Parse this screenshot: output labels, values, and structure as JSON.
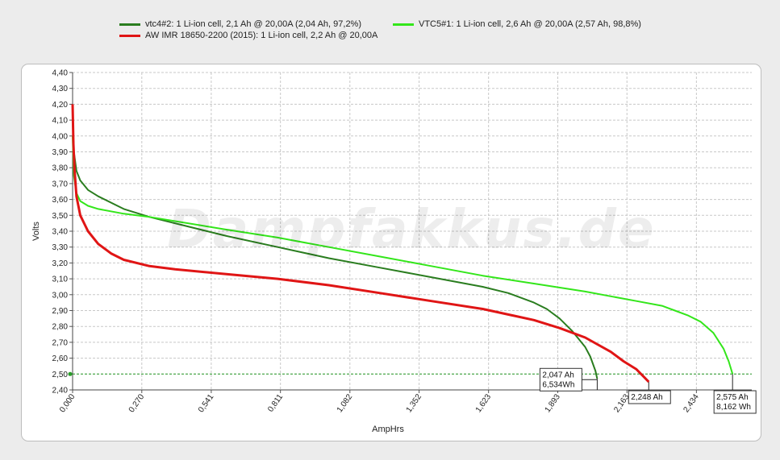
{
  "legend": [
    {
      "label": "vtc4#2: 1 Li-ion cell, 2,1 Ah @ 20,00A (2,04 Ah, 97,2%)",
      "color": "#2a7d1f"
    },
    {
      "label": "VTC5#1: 1 Li-ion cell, 2,6 Ah @ 20,00A (2,57 Ah, 98,8%)",
      "color": "#33e61a"
    },
    {
      "label": "AW IMR 18650-2200 (2015): 1 Li-ion cell, 2,2 Ah @ 20,00A",
      "color": "#e01515"
    }
  ],
  "watermark": "Dampfakkus.de",
  "chart_data": {
    "type": "line",
    "xlabel": "AmpHrs",
    "ylabel": "Volts",
    "xlim": [
      0,
      2.65
    ],
    "ylim": [
      2.4,
      4.4
    ],
    "xticks": [
      "0,000",
      "0,270",
      "0,541",
      "0,811",
      "1,082",
      "1,352",
      "1,623",
      "1,893",
      "2,163",
      "2,434"
    ],
    "yticks": [
      "2,40",
      "2,50",
      "2,60",
      "2,70",
      "2,80",
      "2,90",
      "3,00",
      "3,10",
      "3,20",
      "3,30",
      "3,40",
      "3,50",
      "3,60",
      "3,70",
      "3,80",
      "3,90",
      "4,00",
      "4,10",
      "4,20",
      "4,30",
      "4,40"
    ],
    "grid": true,
    "cutoff_voltage": 2.5,
    "series": [
      {
        "name": "vtc4#2: 1 Li-ion cell, 2,1 Ah @ 20,00A (2,04 Ah, 97,2%)",
        "color": "#2a7d1f",
        "x": [
          0.0,
          0.005,
          0.015,
          0.03,
          0.06,
          0.1,
          0.2,
          0.3,
          0.45,
          0.6,
          0.8,
          1.0,
          1.2,
          1.4,
          1.6,
          1.7,
          1.8,
          1.85,
          1.9,
          1.95,
          2.0,
          2.02,
          2.04,
          2.047
        ],
        "y": [
          4.1,
          3.9,
          3.78,
          3.72,
          3.66,
          3.62,
          3.54,
          3.49,
          3.43,
          3.37,
          3.3,
          3.23,
          3.17,
          3.11,
          3.05,
          3.01,
          2.95,
          2.91,
          2.85,
          2.77,
          2.67,
          2.61,
          2.52,
          2.47
        ]
      },
      {
        "name": "VTC5#1: 1 Li-ion cell, 2,6 Ah @ 20,00A (2,57 Ah, 98,8%)",
        "color": "#33e61a",
        "x": [
          0.0,
          0.005,
          0.015,
          0.03,
          0.06,
          0.1,
          0.2,
          0.3,
          0.45,
          0.6,
          0.8,
          1.0,
          1.2,
          1.4,
          1.6,
          1.8,
          2.0,
          2.1,
          2.2,
          2.3,
          2.35,
          2.4,
          2.45,
          2.5,
          2.54,
          2.56,
          2.575
        ],
        "y": [
          4.0,
          3.75,
          3.64,
          3.59,
          3.56,
          3.54,
          3.51,
          3.49,
          3.45,
          3.41,
          3.36,
          3.3,
          3.24,
          3.18,
          3.12,
          3.07,
          3.02,
          2.99,
          2.96,
          2.93,
          2.9,
          2.87,
          2.83,
          2.76,
          2.66,
          2.58,
          2.5
        ]
      },
      {
        "name": "AW IMR 18650-2200 (2015): 1 Li-ion cell, 2,2 Ah @ 20,00A",
        "color": "#e01515",
        "x": [
          0.0,
          0.003,
          0.008,
          0.015,
          0.03,
          0.06,
          0.1,
          0.15,
          0.2,
          0.3,
          0.4,
          0.6,
          0.8,
          1.0,
          1.2,
          1.4,
          1.6,
          1.8,
          1.9,
          2.0,
          2.1,
          2.15,
          2.2,
          2.23,
          2.248
        ],
        "y": [
          4.2,
          3.95,
          3.78,
          3.62,
          3.5,
          3.4,
          3.32,
          3.26,
          3.22,
          3.18,
          3.16,
          3.13,
          3.1,
          3.06,
          3.01,
          2.96,
          2.91,
          2.84,
          2.79,
          2.73,
          2.64,
          2.58,
          2.53,
          2.48,
          2.45
        ]
      }
    ],
    "annotations": [
      {
        "lines": [
          "2,047 Ah",
          "6,534Wh"
        ],
        "x": 2.047,
        "y": 2.47
      },
      {
        "lines": [
          "2,248 Ah"
        ],
        "x": 2.248,
        "y": 2.45
      },
      {
        "lines": [
          "2,575 Ah",
          "8,162 Wh"
        ],
        "x": 2.575,
        "y": 2.5
      }
    ]
  }
}
